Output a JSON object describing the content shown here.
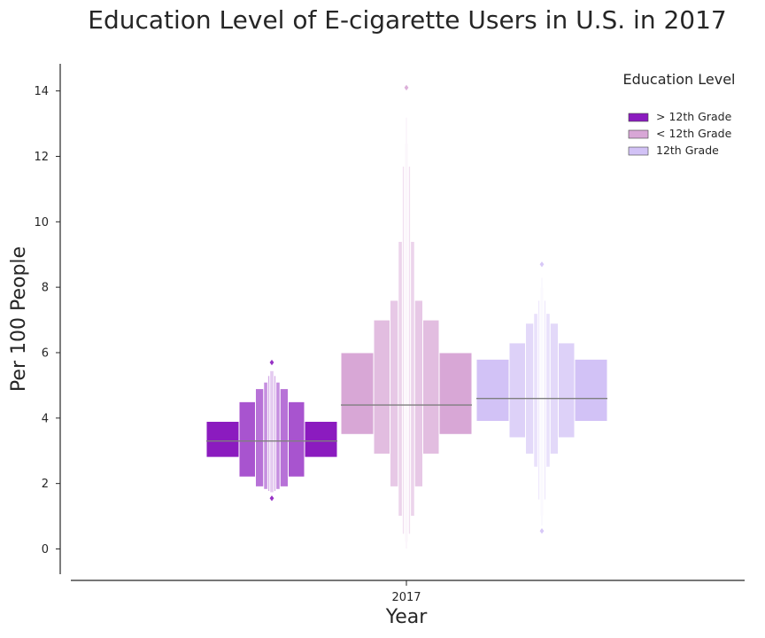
{
  "chart_data": {
    "type": "boxen",
    "title": "Education Level of E-cigarette Users in U.S. in 2017",
    "xlabel": "Year",
    "ylabel": "Per 100 People",
    "categories": [
      "2017"
    ],
    "yticks": [
      0,
      2,
      4,
      6,
      8,
      10,
      12,
      14
    ],
    "ylim": [
      -0.8,
      14.9
    ],
    "legend": {
      "title": "Education Level",
      "position": "top-right",
      "entries": [
        "> 12th Grade",
        "< 12th Grade",
        "12th Grade"
      ]
    },
    "series": [
      {
        "name": "> 12th Grade",
        "color": "#8B1BBF",
        "median": 3.3,
        "boxes": [
          {
            "low": 2.8,
            "high": 3.9
          },
          {
            "low": 2.2,
            "high": 4.5
          },
          {
            "low": 1.9,
            "high": 4.9
          },
          {
            "low": 1.82,
            "high": 5.1
          },
          {
            "low": 1.76,
            "high": 5.3
          },
          {
            "low": 1.72,
            "high": 5.45
          }
        ],
        "outliers": [
          5.7,
          1.55
        ]
      },
      {
        "name": "< 12th Grade",
        "color": "#D8A7D6",
        "median": 4.4,
        "boxes": [
          {
            "low": 3.5,
            "high": 6.0
          },
          {
            "low": 2.9,
            "high": 7.0
          },
          {
            "low": 1.9,
            "high": 7.6
          },
          {
            "low": 1.0,
            "high": 9.4
          },
          {
            "low": 0.45,
            "high": 11.7
          },
          {
            "low": 0.2,
            "high": 12.4
          },
          {
            "low": 0.0,
            "high": 13.2
          }
        ],
        "outliers": [
          14.1
        ]
      },
      {
        "name": "12th Grade",
        "color": "#D2C2F6",
        "median": 4.6,
        "boxes": [
          {
            "low": 3.9,
            "high": 5.8
          },
          {
            "low": 3.4,
            "high": 6.3
          },
          {
            "low": 2.9,
            "high": 6.9
          },
          {
            "low": 2.5,
            "high": 7.2
          },
          {
            "low": 1.5,
            "high": 7.6
          },
          {
            "low": 1.0,
            "high": 8.0
          },
          {
            "low": 0.7,
            "high": 8.3
          }
        ],
        "outliers": [
          8.7,
          0.55
        ]
      }
    ]
  }
}
